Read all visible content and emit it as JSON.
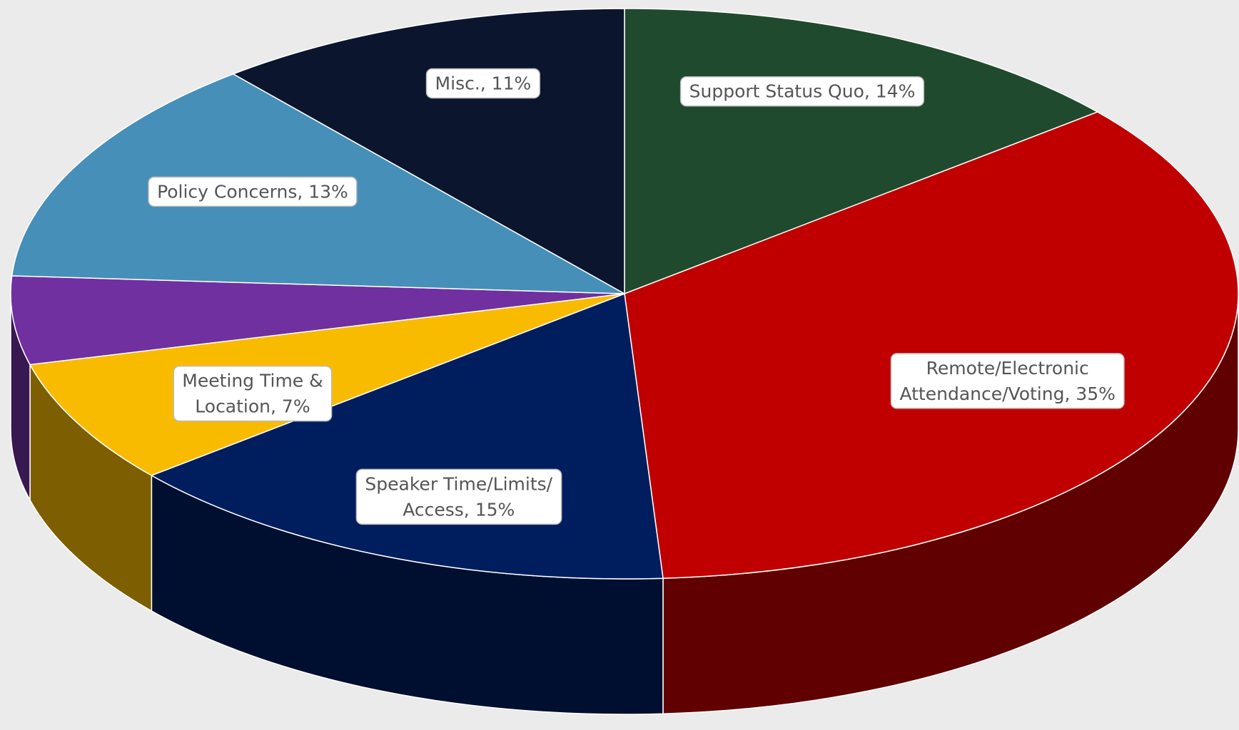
{
  "chart_data": {
    "type": "pie",
    "values": [
      14,
      35,
      15,
      7,
      5,
      13,
      11
    ],
    "value_labels": [
      [
        "Support Status Quo, 14%"
      ],
      [
        "Remote/Electronic",
        "Attendance/Voting, 35%"
      ],
      [
        "Speaker Time/Limits/",
        "Access, 15%"
      ],
      [
        "Meeting Time &",
        "Location, 7%"
      ],
      null,
      [
        "Policy Concerns, 13%"
      ],
      [
        "Misc., 11%"
      ]
    ],
    "colors": [
      "#1f4a2e",
      "#c00000",
      "#001e5e",
      "#f9bb00",
      "#7030a0",
      "#468fb8",
      "#0b152e"
    ]
  }
}
